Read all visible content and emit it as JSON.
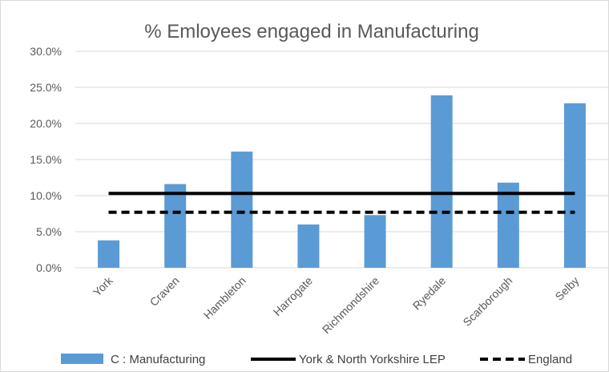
{
  "chart_data": {
    "type": "bar",
    "title": "% Emloyees engaged in Manufacturing",
    "categories": [
      "York",
      "Craven",
      "Hambleton",
      "Harrogate",
      "Richmondshire",
      "Ryedale",
      "Scarborough",
      "Selby"
    ],
    "series": [
      {
        "name": "C : Manufacturing",
        "type": "bar",
        "color": "#5b9bd5",
        "values": [
          3.8,
          11.6,
          16.1,
          6.0,
          7.3,
          23.9,
          11.8,
          22.8
        ]
      },
      {
        "name": "York & North Yorkshire LEP",
        "type": "line",
        "style": "solid",
        "color": "#000000",
        "values": [
          10.3,
          10.3,
          10.3,
          10.3,
          10.3,
          10.3,
          10.3,
          10.3
        ]
      },
      {
        "name": "England",
        "type": "line",
        "style": "dashed",
        "color": "#000000",
        "values": [
          7.7,
          7.7,
          7.7,
          7.7,
          7.7,
          7.7,
          7.7,
          7.7
        ]
      }
    ],
    "yticks": [
      "0.0%",
      "5.0%",
      "10.0%",
      "15.0%",
      "20.0%",
      "25.0%",
      "30.0%"
    ],
    "ylim": [
      0,
      30
    ],
    "grid": true,
    "legend_position": "bottom"
  }
}
